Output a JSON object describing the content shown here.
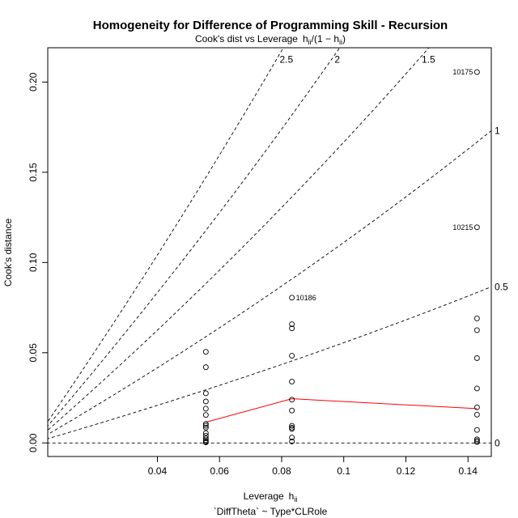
{
  "chart_data": {
    "type": "scatter",
    "title": "Homogeneity for Difference of Programming Skill - Recursion",
    "subtitle_prefix": "Cook's dist vs Leverage",
    "subtitle_formula_h": "h",
    "subtitle_formula_ii": "ii",
    "subtitle_formula_mid": "/",
    "subtitle_formula_open": "(1 − h",
    "subtitle_formula_close": ")",
    "xlabel_prefix": "Leverage",
    "xlabel_h": "h",
    "xlabel_ii": "ii",
    "xlabel_formula": "`DiffTheta` ~ Type*CLRole",
    "ylabel": "Cook's distance",
    "xlim": [
      0.0047,
      0.1475
    ],
    "ylim": [
      -0.0075,
      0.219
    ],
    "x_ticks": [
      0.04,
      0.06,
      0.08,
      0.1,
      0.12,
      0.14
    ],
    "x_tick_labels": [
      "0.04",
      "0.06",
      "0.08",
      "0.1",
      "0.12",
      "0.14"
    ],
    "y_ticks": [
      0.0,
      0.05,
      0.1,
      0.15,
      0.2
    ],
    "y_tick_labels": [
      "0.00",
      "0.05",
      "0.10",
      "0.15",
      "0.20"
    ],
    "contours": [
      {
        "label": "0",
        "k": 0
      },
      {
        "label": "0.5",
        "k": 0.5
      },
      {
        "label": "1",
        "k": 1
      },
      {
        "label": "1.5",
        "k": 1.5
      },
      {
        "label": "2",
        "k": 2
      },
      {
        "label": "2.5",
        "k": 2.5
      }
    ],
    "points": [
      {
        "x": 0.0556,
        "y": 0.0505
      },
      {
        "x": 0.0556,
        "y": 0.042
      },
      {
        "x": 0.0556,
        "y": 0.0275
      },
      {
        "x": 0.0556,
        "y": 0.023
      },
      {
        "x": 0.0556,
        "y": 0.019
      },
      {
        "x": 0.0556,
        "y": 0.0155
      },
      {
        "x": 0.0556,
        "y": 0.0105
      },
      {
        "x": 0.0556,
        "y": 0.0095
      },
      {
        "x": 0.0556,
        "y": 0.0085
      },
      {
        "x": 0.0556,
        "y": 0.0055
      },
      {
        "x": 0.0556,
        "y": 0.004
      },
      {
        "x": 0.0556,
        "y": 0.0025
      },
      {
        "x": 0.0556,
        "y": 0.0015
      },
      {
        "x": 0.0556,
        "y": 0.0008
      },
      {
        "x": 0.0556,
        "y": 0.0003
      },
      {
        "x": 0.0833,
        "y": 0.0805
      },
      {
        "x": 0.0833,
        "y": 0.0658
      },
      {
        "x": 0.0833,
        "y": 0.0635
      },
      {
        "x": 0.0833,
        "y": 0.0483
      },
      {
        "x": 0.0833,
        "y": 0.034
      },
      {
        "x": 0.0833,
        "y": 0.024
      },
      {
        "x": 0.0833,
        "y": 0.018
      },
      {
        "x": 0.0833,
        "y": 0.0095
      },
      {
        "x": 0.0833,
        "y": 0.0085
      },
      {
        "x": 0.0833,
        "y": 0.0078
      },
      {
        "x": 0.0833,
        "y": 0.003
      },
      {
        "x": 0.0833,
        "y": 0.0008
      },
      {
        "x": 0.1429,
        "y": 0.2055
      },
      {
        "x": 0.1429,
        "y": 0.1195
      },
      {
        "x": 0.1429,
        "y": 0.069
      },
      {
        "x": 0.1429,
        "y": 0.0625
      },
      {
        "x": 0.1429,
        "y": 0.047
      },
      {
        "x": 0.1429,
        "y": 0.0302
      },
      {
        "x": 0.1429,
        "y": 0.0197
      },
      {
        "x": 0.1429,
        "y": 0.0157
      },
      {
        "x": 0.1429,
        "y": 0.0072
      },
      {
        "x": 0.1429,
        "y": 0.002
      },
      {
        "x": 0.1429,
        "y": 0.0012
      },
      {
        "x": 0.1429,
        "y": 0.0005
      }
    ],
    "point_labels": [
      {
        "text": "10175",
        "x": 0.1429,
        "y": 0.2055,
        "side": "left"
      },
      {
        "text": "10215",
        "x": 0.1429,
        "y": 0.1195,
        "side": "left"
      },
      {
        "text": "10186",
        "x": 0.0833,
        "y": 0.0805,
        "side": "right"
      }
    ],
    "smooth_line": {
      "color": "#ff0000",
      "x": [
        0.0556,
        0.0833,
        0.1429
      ],
      "y": [
        0.0115,
        0.0245,
        0.019
      ]
    }
  }
}
